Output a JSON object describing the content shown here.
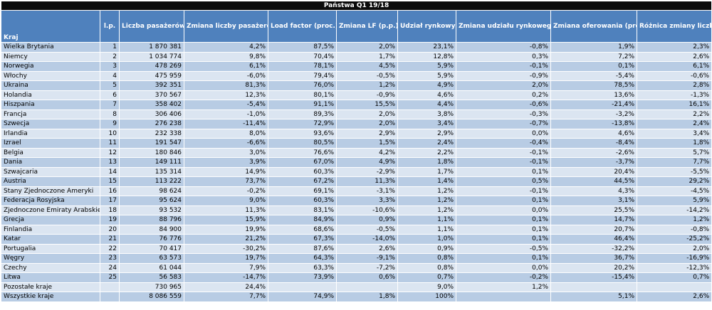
{
  "title": "Państwa Q1 19/18",
  "columns": [
    "Kraj",
    "l.p.",
    "Liczba pasażerów",
    "Zmiana liczby pasażerów",
    "Load factor (proc.)",
    "Zmiana LF (p.p.)",
    "Udział rynkowy",
    "Zmiana udziału rynkowego",
    "Zmiana oferowania (proc.)",
    "Różnica zmiany liczby pasażerów  i zmiany oferowania"
  ],
  "rows": [
    [
      "Wielka Brytania",
      "1",
      "1 870 381",
      "4,2%",
      "87,5%",
      "2,0%",
      "23,1%",
      "-0,8%",
      "1,9%",
      "2,3%"
    ],
    [
      "Niemcy",
      "2",
      "1 034 774",
      "9,8%",
      "70,4%",
      "1,7%",
      "12,8%",
      "0,3%",
      "7,2%",
      "2,6%"
    ],
    [
      "Norwegia",
      "3",
      "478 269",
      "6,1%",
      "78,1%",
      "4,5%",
      "5,9%",
      "-0,1%",
      "0,1%",
      "6,1%"
    ],
    [
      "Włochy",
      "4",
      "475 959",
      "-6,0%",
      "79,4%",
      "-0,5%",
      "5,9%",
      "-0,9%",
      "-5,4%",
      "-0,6%"
    ],
    [
      "Ukraina",
      "5",
      "392 351",
      "81,3%",
      "76,0%",
      "1,2%",
      "4,9%",
      "2,0%",
      "78,5%",
      "2,8%"
    ],
    [
      "Holandia",
      "6",
      "370 567",
      "12,3%",
      "80,1%",
      "-0,9%",
      "4,6%",
      "0,2%",
      "13,6%",
      "-1,3%"
    ],
    [
      "Hiszpania",
      "7",
      "358 402",
      "-5,4%",
      "91,1%",
      "15,5%",
      "4,4%",
      "-0,6%",
      "-21,4%",
      "16,1%"
    ],
    [
      "Francja",
      "8",
      "306 406",
      "-1,0%",
      "89,3%",
      "2,0%",
      "3,8%",
      "-0,3%",
      "-3,2%",
      "2,2%"
    ],
    [
      "Szwecja",
      "9",
      "276 238",
      "-11,4%",
      "72,9%",
      "2,0%",
      "3,4%",
      "-0,7%",
      "-13,8%",
      "2,4%"
    ],
    [
      "Irlandia",
      "10",
      "232 338",
      "8,0%",
      "93,6%",
      "2,9%",
      "2,9%",
      "0,0%",
      "4,6%",
      "3,4%"
    ],
    [
      "Izrael",
      "11",
      "191 547",
      "-6,6%",
      "80,5%",
      "1,5%",
      "2,4%",
      "-0,4%",
      "-8,4%",
      "1,8%"
    ],
    [
      "Belgia",
      "12",
      "180 846",
      "3,0%",
      "76,6%",
      "4,2%",
      "2,2%",
      "-0,1%",
      "-2,6%",
      "5,7%"
    ],
    [
      "Dania",
      "13",
      "149 111",
      "3,9%",
      "67,0%",
      "4,9%",
      "1,8%",
      "-0,1%",
      "-3,7%",
      "7,7%"
    ],
    [
      "Szwajcaria",
      "14",
      "135 314",
      "14,9%",
      "60,3%",
      "-2,9%",
      "1,7%",
      "0,1%",
      "20,4%",
      "-5,5%"
    ],
    [
      "Austria",
      "15",
      "113 222",
      "73,7%",
      "67,2%",
      "11,3%",
      "1,4%",
      "0,5%",
      "44,5%",
      "29,2%"
    ],
    [
      "Stany Zjednoczone Ameryki",
      "16",
      "98 624",
      "-0,2%",
      "69,1%",
      "-3,1%",
      "1,2%",
      "-0,1%",
      "4,3%",
      "-4,5%"
    ],
    [
      "Federacja Rosyjska",
      "17",
      "95 624",
      "9,0%",
      "60,3%",
      "3,3%",
      "1,2%",
      "0,1%",
      "3,1%",
      "5,9%"
    ],
    [
      "Zjednoczone Emiraty Arabskie",
      "18",
      "93 532",
      "11,3%",
      "83,1%",
      "-10,6%",
      "1,2%",
      "0,0%",
      "25,5%",
      "-14,2%"
    ],
    [
      "Grecja",
      "19",
      "88 796",
      "15,9%",
      "84,9%",
      "0,9%",
      "1,1%",
      "0,1%",
      "14,7%",
      "1,2%"
    ],
    [
      "Finlandia",
      "20",
      "84 900",
      "19,9%",
      "68,6%",
      "-0,5%",
      "1,1%",
      "0,1%",
      "20,7%",
      "-0,8%"
    ],
    [
      "Katar",
      "21",
      "76 776",
      "21,2%",
      "67,3%",
      "-14,0%",
      "1,0%",
      "0,1%",
      "46,4%",
      "-25,2%"
    ],
    [
      "Portugalia",
      "22",
      "70 417",
      "-30,2%",
      "87,6%",
      "2,6%",
      "0,9%",
      "-0,5%",
      "-32,2%",
      "2,0%"
    ],
    [
      "Węgry",
      "23",
      "63 573",
      "19,7%",
      "64,3%",
      "-9,1%",
      "0,8%",
      "0,1%",
      "36,7%",
      "-16,9%"
    ],
    [
      "Czechy",
      "24",
      "61 044",
      "7,9%",
      "63,3%",
      "-7,2%",
      "0,8%",
      "0,0%",
      "20,2%",
      "-12,3%"
    ],
    [
      "Litwa",
      "25",
      "56 583",
      "-14,7%",
      "73,9%",
      "0,6%",
      "0,7%",
      "-0,2%",
      "-15,4%",
      "0,7%"
    ],
    [
      "Pozostałe kraje",
      "",
      "730 965",
      "24,4%",
      "",
      "",
      "9,0%",
      "1,2%",
      "",
      ""
    ],
    [
      "Wszystkie kraje",
      "",
      "8 086 559",
      "7,7%",
      "74,9%",
      "1,8%",
      "100%",
      "",
      "5,1%",
      "2,6%"
    ]
  ]
}
